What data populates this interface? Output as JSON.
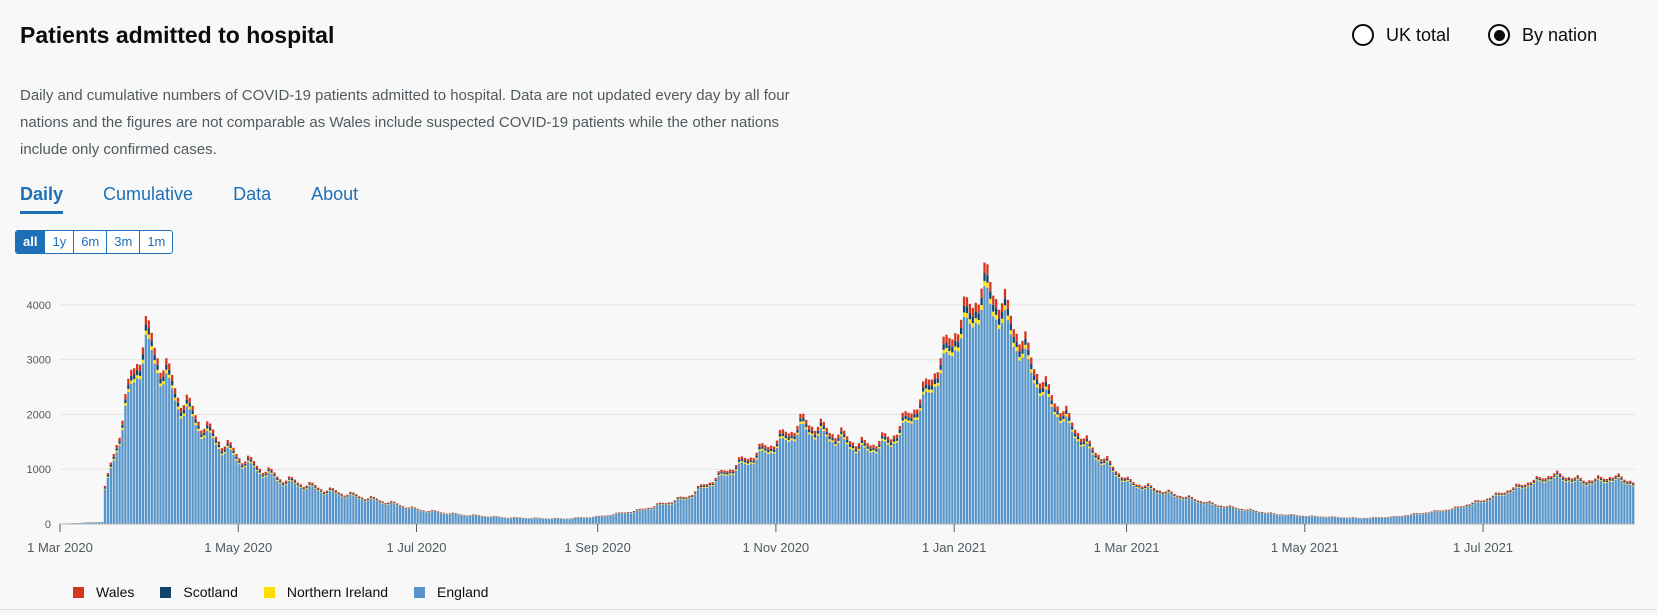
{
  "title": "Patients admitted to hospital",
  "radios": [
    {
      "label": "UK total",
      "selected": false
    },
    {
      "label": "By nation",
      "selected": true
    }
  ],
  "description": "Daily and cumulative numbers of COVID-19 patients admitted to hospital. Data are not updated every day by all four nations and the figures are not comparable as Wales include suspected COVID-19 patients while the other nations include only confirmed cases.",
  "tabs": [
    {
      "label": "Daily",
      "active": true
    },
    {
      "label": "Cumulative",
      "active": false
    },
    {
      "label": "Data",
      "active": false
    },
    {
      "label": "About",
      "active": false
    }
  ],
  "ranges": [
    {
      "label": "all",
      "active": true
    },
    {
      "label": "1y",
      "active": false
    },
    {
      "label": "6m",
      "active": false
    },
    {
      "label": "3m",
      "active": false
    },
    {
      "label": "1m",
      "active": false
    }
  ],
  "chart_data": {
    "type": "bar",
    "stacked": true,
    "x_ticks": [
      "1 Mar 2020",
      "1 May 2020",
      "1 Jul 2020",
      "1 Sep 2020",
      "1 Nov 2020",
      "1 Jan 2021",
      "1 Mar 2021",
      "1 May 2021",
      "1 Jul 2021"
    ],
    "y_ticks": [
      "0",
      "1000",
      "2000",
      "3000",
      "4000"
    ],
    "ylim": [
      0,
      4600
    ],
    "x_range": [
      "2020-03-01",
      "2021-08-21"
    ],
    "grid": true,
    "legend_position": "bottom-left",
    "series": [
      {
        "name": "Wales",
        "color": "#d4351c",
        "share": 0.04
      },
      {
        "name": "Scotland",
        "color": "#12436d",
        "share": 0.03
      },
      {
        "name": "Northern Ireland",
        "color": "#ffdd00",
        "share": 0.02
      },
      {
        "name": "England",
        "color": "#5694ca",
        "share": 0.91
      }
    ],
    "daily_total_anchors": [
      [
        "2020-03-01",
        5
      ],
      [
        "2020-03-15",
        40
      ],
      [
        "2020-03-16",
        650
      ],
      [
        "2020-03-20",
        1500
      ],
      [
        "2020-03-25",
        2700
      ],
      [
        "2020-03-30",
        3550
      ],
      [
        "2020-04-03",
        3150
      ],
      [
        "2020-04-10",
        2400
      ],
      [
        "2020-04-20",
        1750
      ],
      [
        "2020-05-01",
        1250
      ],
      [
        "2020-05-15",
        850
      ],
      [
        "2020-06-01",
        620
      ],
      [
        "2020-06-20",
        420
      ],
      [
        "2020-07-01",
        270
      ],
      [
        "2020-07-15",
        180
      ],
      [
        "2020-08-01",
        120
      ],
      [
        "2020-08-20",
        100
      ],
      [
        "2020-09-01",
        140
      ],
      [
        "2020-09-15",
        260
      ],
      [
        "2020-10-01",
        500
      ],
      [
        "2020-10-15",
        1000
      ],
      [
        "2020-11-01",
        1550
      ],
      [
        "2020-11-10",
        1900
      ],
      [
        "2020-11-20",
        1700
      ],
      [
        "2020-12-01",
        1450
      ],
      [
        "2020-12-10",
        1600
      ],
      [
        "2020-12-20",
        2300
      ],
      [
        "2021-01-01",
        3600
      ],
      [
        "2021-01-12",
        4500
      ],
      [
        "2021-01-20",
        3800
      ],
      [
        "2021-02-01",
        2500
      ],
      [
        "2021-02-15",
        1500
      ],
      [
        "2021-03-01",
        800
      ],
      [
        "2021-03-15",
        580
      ],
      [
        "2021-04-01",
        350
      ],
      [
        "2021-04-20",
        190
      ],
      [
        "2021-05-01",
        150
      ],
      [
        "2021-05-20",
        110
      ],
      [
        "2021-06-01",
        140
      ],
      [
        "2021-06-20",
        280
      ],
      [
        "2021-07-01",
        450
      ],
      [
        "2021-07-15",
        750
      ],
      [
        "2021-07-25",
        920
      ],
      [
        "2021-08-05",
        800
      ],
      [
        "2021-08-15",
        880
      ],
      [
        "2021-08-21",
        780
      ]
    ]
  }
}
